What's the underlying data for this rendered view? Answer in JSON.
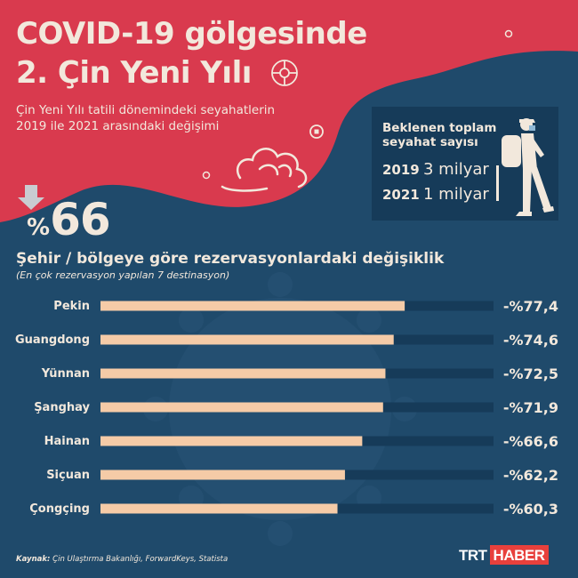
{
  "header": {
    "title_line1": "COVID-19 gölgesinde",
    "title_line2": "2. Çin Yeni Yılı",
    "subtitle_line1": "Çin Yeni Yılı tatili dönemindeki seyahatlerin",
    "subtitle_line2": "2019 ile 2021 arasındaki değişimi"
  },
  "headline": {
    "sign": "%",
    "value": "66"
  },
  "info_box": {
    "title_line1": "Beklenen toplam",
    "title_line2": "seyahat sayısı",
    "rows": [
      {
        "year": "2019",
        "value": "3 milyar"
      },
      {
        "year": "2021",
        "value": "1 milyar"
      }
    ]
  },
  "colors": {
    "background": "#1f4a6b",
    "header_red": "#d93a4e",
    "bar_fill": "#f5cba7",
    "bar_track": "#163b59",
    "text": "#f2e8dc",
    "logo_red": "#e8403c"
  },
  "chart_data": {
    "type": "bar",
    "orientation": "horizontal",
    "title": "Şehir / bölgeye göre rezervasyonlardaki değişiklik",
    "subtitle": "(En çok rezervasyon yapılan 7 destinasyon)",
    "categories": [
      "Pekin",
      "Guangdong",
      "Yünnan",
      "Şanghay",
      "Hainan",
      "Siçuan",
      "Çongçing"
    ],
    "values": [
      -77.4,
      -74.6,
      -72.5,
      -71.9,
      -66.6,
      -62.2,
      -60.3
    ],
    "value_labels": [
      "-%77,4",
      "-%74,6",
      "-%72,5",
      "-%71,9",
      "-%66,6",
      "-%62,2",
      "-%60,3"
    ],
    "xlim": [
      0,
      100
    ],
    "grid": false,
    "legend": "none"
  },
  "footer": {
    "source_label": "Kaynak:",
    "source_text": "Çin Ulaştırma Bakanlığı, ForwardKeys, Statista",
    "logo_part1": "TRT",
    "logo_part2": "HABER"
  }
}
